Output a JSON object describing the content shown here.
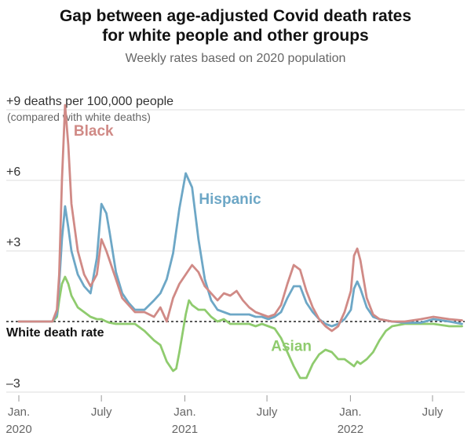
{
  "title_line1": "Gap between age-adjusted Covid death rates",
  "title_line2": "for white people and other groups",
  "subtitle": "Weekly rates based on 2020 population",
  "chart_data": {
    "type": "line",
    "title": "Gap between age-adjusted Covid death rates for white people and other groups",
    "subtitle": "Weekly rates based on 2020 population",
    "ylabel": "+9 deaths per 100,000 people",
    "ylabel_note": "(compared with white deaths)",
    "baseline_label": "White death rate",
    "ylim": [
      -3,
      9
    ],
    "yticks": [
      {
        "value": 9,
        "label": "+9 deaths per 100,000 people"
      },
      {
        "value": 6,
        "label": "+6"
      },
      {
        "value": 3,
        "label": "+3"
      },
      {
        "value": -3,
        "label": "–3"
      }
    ],
    "xlim": [
      "2020-01-01",
      "2022-09-10"
    ],
    "xticks": [
      {
        "date": "2020-01-01",
        "label": "Jan.",
        "year": "2020"
      },
      {
        "date": "2020-07-01",
        "label": "July",
        "year": ""
      },
      {
        "date": "2021-01-01",
        "label": "Jan.",
        "year": "2021"
      },
      {
        "date": "2021-07-01",
        "label": "July",
        "year": ""
      },
      {
        "date": "2022-01-01",
        "label": "Jan.",
        "year": "2022"
      },
      {
        "date": "2022-07-01",
        "label": "July",
        "year": ""
      }
    ],
    "grid": true,
    "series": [
      {
        "name": "Black",
        "color": "#d08a86",
        "points": [
          [
            "2020-01-01",
            0
          ],
          [
            "2020-03-15",
            0
          ],
          [
            "2020-03-25",
            0.5
          ],
          [
            "2020-03-30",
            2
          ],
          [
            "2020-04-05",
            6
          ],
          [
            "2020-04-12",
            9.2
          ],
          [
            "2020-04-19",
            7.5
          ],
          [
            "2020-04-26",
            5
          ],
          [
            "2020-05-10",
            3
          ],
          [
            "2020-05-24",
            2
          ],
          [
            "2020-06-07",
            1.5
          ],
          [
            "2020-06-21",
            2
          ],
          [
            "2020-07-01",
            3.5
          ],
          [
            "2020-07-12",
            3.0
          ],
          [
            "2020-07-19",
            2.6
          ],
          [
            "2020-08-02",
            1.8
          ],
          [
            "2020-08-16",
            1.0
          ],
          [
            "2020-08-30",
            0.7
          ],
          [
            "2020-09-13",
            0.4
          ],
          [
            "2020-10-04",
            0.4
          ],
          [
            "2020-10-25",
            0.2
          ],
          [
            "2020-11-08",
            0.6
          ],
          [
            "2020-11-22",
            0.0
          ],
          [
            "2020-12-06",
            1.0
          ],
          [
            "2020-12-20",
            1.6
          ],
          [
            "2021-01-03",
            2.0
          ],
          [
            "2021-01-17",
            2.4
          ],
          [
            "2021-01-31",
            2.1
          ],
          [
            "2021-02-14",
            1.5
          ],
          [
            "2021-02-28",
            1.2
          ],
          [
            "2021-03-14",
            0.9
          ],
          [
            "2021-03-28",
            1.2
          ],
          [
            "2021-04-11",
            1.1
          ],
          [
            "2021-04-25",
            1.3
          ],
          [
            "2021-05-09",
            0.9
          ],
          [
            "2021-05-23",
            0.6
          ],
          [
            "2021-06-06",
            0.4
          ],
          [
            "2021-06-20",
            0.3
          ],
          [
            "2021-07-04",
            0.2
          ],
          [
            "2021-07-18",
            0.3
          ],
          [
            "2021-08-01",
            0.7
          ],
          [
            "2021-08-15",
            1.6
          ],
          [
            "2021-08-29",
            2.4
          ],
          [
            "2021-09-12",
            2.2
          ],
          [
            "2021-09-26",
            1.3
          ],
          [
            "2021-10-10",
            0.6
          ],
          [
            "2021-10-24",
            0.1
          ],
          [
            "2021-11-07",
            -0.2
          ],
          [
            "2021-11-21",
            -0.4
          ],
          [
            "2021-12-05",
            -0.2
          ],
          [
            "2021-12-19",
            0.4
          ],
          [
            "2022-01-02",
            1.3
          ],
          [
            "2022-01-09",
            2.8
          ],
          [
            "2022-01-16",
            3.1
          ],
          [
            "2022-01-23",
            2.6
          ],
          [
            "2022-02-06",
            1.0
          ],
          [
            "2022-02-20",
            0.3
          ],
          [
            "2022-03-06",
            0.1
          ],
          [
            "2022-04-03",
            0.0
          ],
          [
            "2022-05-01",
            0.0
          ],
          [
            "2022-06-05",
            0.1
          ],
          [
            "2022-07-03",
            0.2
          ],
          [
            "2022-08-07",
            0.1
          ],
          [
            "2022-09-04",
            0.05
          ]
        ]
      },
      {
        "name": "Hispanic",
        "color": "#6da7c6",
        "points": [
          [
            "2020-01-01",
            0
          ],
          [
            "2020-03-15",
            0
          ],
          [
            "2020-03-25",
            0.3
          ],
          [
            "2020-03-30",
            1.6
          ],
          [
            "2020-04-05",
            3.5
          ],
          [
            "2020-04-12",
            4.9
          ],
          [
            "2020-04-19",
            4.0
          ],
          [
            "2020-04-26",
            3.0
          ],
          [
            "2020-05-10",
            2.0
          ],
          [
            "2020-05-24",
            1.5
          ],
          [
            "2020-06-07",
            1.2
          ],
          [
            "2020-06-21",
            2.7
          ],
          [
            "2020-07-01",
            5.0
          ],
          [
            "2020-07-12",
            4.6
          ],
          [
            "2020-07-19",
            3.8
          ],
          [
            "2020-08-02",
            2.1
          ],
          [
            "2020-08-16",
            1.2
          ],
          [
            "2020-08-30",
            0.8
          ],
          [
            "2020-09-13",
            0.5
          ],
          [
            "2020-10-04",
            0.5
          ],
          [
            "2020-10-25",
            0.9
          ],
          [
            "2020-11-08",
            1.2
          ],
          [
            "2020-11-22",
            1.8
          ],
          [
            "2020-12-06",
            2.9
          ],
          [
            "2020-12-20",
            4.8
          ],
          [
            "2021-01-03",
            6.3
          ],
          [
            "2021-01-17",
            5.7
          ],
          [
            "2021-01-31",
            3.5
          ],
          [
            "2021-02-14",
            1.8
          ],
          [
            "2021-02-28",
            0.9
          ],
          [
            "2021-03-14",
            0.5
          ],
          [
            "2021-03-28",
            0.4
          ],
          [
            "2021-04-11",
            0.3
          ],
          [
            "2021-04-25",
            0.3
          ],
          [
            "2021-05-09",
            0.3
          ],
          [
            "2021-05-23",
            0.3
          ],
          [
            "2021-06-06",
            0.2
          ],
          [
            "2021-06-20",
            0.2
          ],
          [
            "2021-07-04",
            0.1
          ],
          [
            "2021-07-18",
            0.2
          ],
          [
            "2021-08-01",
            0.4
          ],
          [
            "2021-08-15",
            1.0
          ],
          [
            "2021-08-29",
            1.5
          ],
          [
            "2021-09-12",
            1.5
          ],
          [
            "2021-09-26",
            0.8
          ],
          [
            "2021-10-10",
            0.4
          ],
          [
            "2021-10-24",
            0.1
          ],
          [
            "2021-11-07",
            -0.1
          ],
          [
            "2021-11-21",
            -0.2
          ],
          [
            "2021-12-05",
            -0.1
          ],
          [
            "2021-12-19",
            0.1
          ],
          [
            "2022-01-02",
            0.5
          ],
          [
            "2022-01-09",
            1.4
          ],
          [
            "2022-01-16",
            1.7
          ],
          [
            "2022-01-23",
            1.4
          ],
          [
            "2022-02-06",
            0.6
          ],
          [
            "2022-02-20",
            0.2
          ],
          [
            "2022-03-06",
            0.1
          ],
          [
            "2022-04-03",
            0.0
          ],
          [
            "2022-05-01",
            -0.05
          ],
          [
            "2022-06-05",
            -0.05
          ],
          [
            "2022-07-03",
            0.1
          ],
          [
            "2022-08-07",
            0.0
          ],
          [
            "2022-09-04",
            -0.1
          ]
        ]
      },
      {
        "name": "Asian",
        "color": "#8fcb6e",
        "points": [
          [
            "2020-01-01",
            0
          ],
          [
            "2020-03-15",
            0
          ],
          [
            "2020-03-25",
            0.2
          ],
          [
            "2020-03-30",
            0.9
          ],
          [
            "2020-04-05",
            1.6
          ],
          [
            "2020-04-12",
            1.9
          ],
          [
            "2020-04-19",
            1.6
          ],
          [
            "2020-04-26",
            1.1
          ],
          [
            "2020-05-10",
            0.6
          ],
          [
            "2020-05-24",
            0.4
          ],
          [
            "2020-06-07",
            0.2
          ],
          [
            "2020-06-21",
            0.1
          ],
          [
            "2020-07-01",
            0.1
          ],
          [
            "2020-07-12",
            0.0
          ],
          [
            "2020-07-19",
            -0.05
          ],
          [
            "2020-08-02",
            -0.1
          ],
          [
            "2020-08-16",
            -0.1
          ],
          [
            "2020-08-30",
            -0.1
          ],
          [
            "2020-09-13",
            -0.1
          ],
          [
            "2020-10-04",
            -0.4
          ],
          [
            "2020-10-25",
            -0.8
          ],
          [
            "2020-11-08",
            -1.0
          ],
          [
            "2020-11-22",
            -1.7
          ],
          [
            "2020-12-06",
            -2.1
          ],
          [
            "2020-12-13",
            -2.0
          ],
          [
            "2020-12-20",
            -1.3
          ],
          [
            "2021-01-03",
            0.3
          ],
          [
            "2021-01-10",
            0.9
          ],
          [
            "2021-01-17",
            0.7
          ],
          [
            "2021-01-31",
            0.5
          ],
          [
            "2021-02-14",
            0.5
          ],
          [
            "2021-02-28",
            0.2
          ],
          [
            "2021-03-14",
            0.0
          ],
          [
            "2021-03-28",
            0.1
          ],
          [
            "2021-04-11",
            -0.1
          ],
          [
            "2021-04-25",
            -0.1
          ],
          [
            "2021-05-09",
            -0.1
          ],
          [
            "2021-05-23",
            -0.1
          ],
          [
            "2021-06-06",
            -0.2
          ],
          [
            "2021-06-20",
            -0.1
          ],
          [
            "2021-07-04",
            -0.2
          ],
          [
            "2021-07-18",
            -0.3
          ],
          [
            "2021-08-01",
            -0.7
          ],
          [
            "2021-08-15",
            -1.3
          ],
          [
            "2021-08-29",
            -1.9
          ],
          [
            "2021-09-12",
            -2.4
          ],
          [
            "2021-09-26",
            -2.4
          ],
          [
            "2021-10-10",
            -1.8
          ],
          [
            "2021-10-24",
            -1.4
          ],
          [
            "2021-11-07",
            -1.2
          ],
          [
            "2021-11-21",
            -1.3
          ],
          [
            "2021-12-05",
            -1.6
          ],
          [
            "2021-12-19",
            -1.6
          ],
          [
            "2022-01-02",
            -1.8
          ],
          [
            "2022-01-09",
            -1.9
          ],
          [
            "2022-01-16",
            -1.7
          ],
          [
            "2022-01-23",
            -1.8
          ],
          [
            "2022-02-06",
            -1.6
          ],
          [
            "2022-02-20",
            -1.3
          ],
          [
            "2022-03-06",
            -0.8
          ],
          [
            "2022-03-20",
            -0.4
          ],
          [
            "2022-04-03",
            -0.2
          ],
          [
            "2022-05-01",
            -0.1
          ],
          [
            "2022-06-05",
            -0.1
          ],
          [
            "2022-07-03",
            -0.1
          ],
          [
            "2022-08-07",
            -0.2
          ],
          [
            "2022-09-04",
            -0.2
          ]
        ]
      }
    ]
  }
}
